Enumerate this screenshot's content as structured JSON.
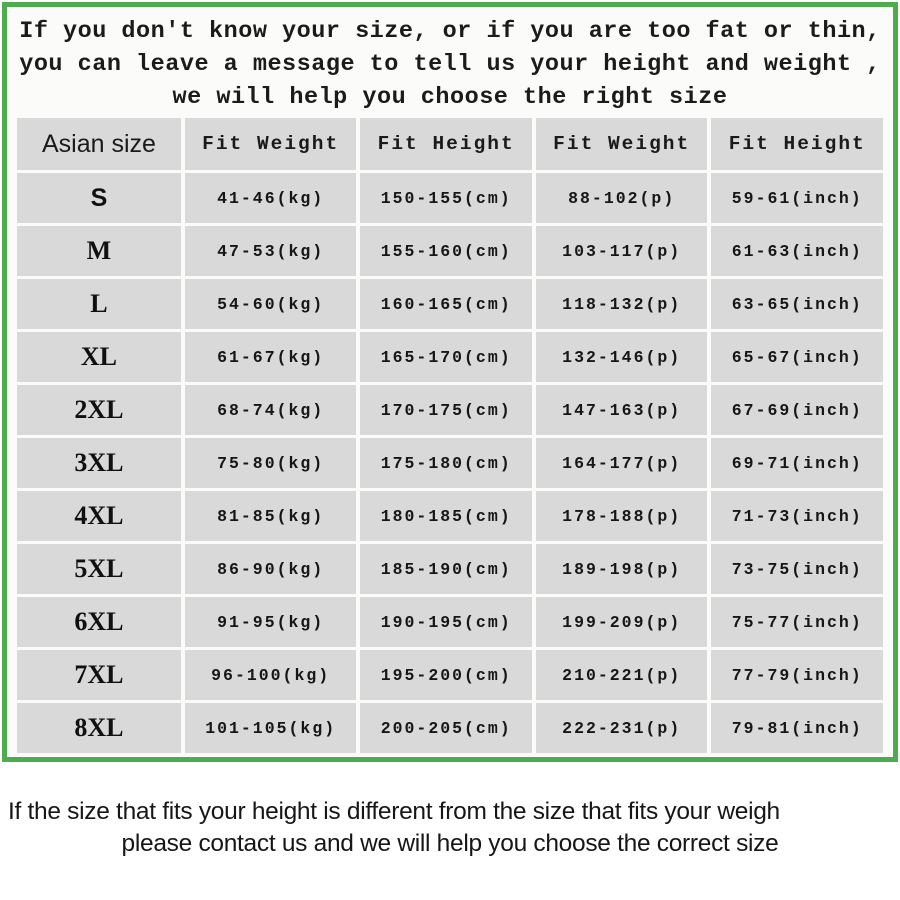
{
  "notice_top": {
    "lines": [
      "If you don't know your size, or if you are too fat or thin,",
      "you can leave a message to tell us your height and weight ,",
      "we will help you choose the right size"
    ]
  },
  "size_table": {
    "headers": [
      "Asian size",
      "Fit Weight",
      "Fit Height",
      "Fit Weight",
      "Fit Height"
    ],
    "rows": [
      [
        "S",
        "41-46(kg)",
        "150-155(cm)",
        "88-102(p)",
        "59-61(inch)"
      ],
      [
        "M",
        "47-53(kg)",
        "155-160(cm)",
        "103-117(p)",
        "61-63(inch)"
      ],
      [
        "L",
        "54-60(kg)",
        "160-165(cm)",
        "118-132(p)",
        "63-65(inch)"
      ],
      [
        "XL",
        "61-67(kg)",
        "165-170(cm)",
        "132-146(p)",
        "65-67(inch)"
      ],
      [
        "2XL",
        "68-74(kg)",
        "170-175(cm)",
        "147-163(p)",
        "67-69(inch)"
      ],
      [
        "3XL",
        "75-80(kg)",
        "175-180(cm)",
        "164-177(p)",
        "69-71(inch)"
      ],
      [
        "4XL",
        "81-85(kg)",
        "180-185(cm)",
        "178-188(p)",
        "71-73(inch)"
      ],
      [
        "5XL",
        "86-90(kg)",
        "185-190(cm)",
        "189-198(p)",
        "73-75(inch)"
      ],
      [
        "6XL",
        "91-95(kg)",
        "190-195(cm)",
        "199-209(p)",
        "75-77(inch)"
      ],
      [
        "7XL",
        "96-100(kg)",
        "195-200(cm)",
        "210-221(p)",
        "77-79(inch)"
      ],
      [
        "8XL",
        "101-105(kg)",
        "200-205(cm)",
        "222-231(p)",
        "79-81(inch)"
      ]
    ]
  },
  "notice_bottom": {
    "lines": [
      "If the size that fits your height is different from the size that fits your weigh",
      "please contact us and we will help you choose the correct size"
    ]
  },
  "colors": {
    "frame_green": "#4dac4f",
    "cell_gray": "#d9d9d9",
    "panel_bg": "#fbfbfa"
  }
}
